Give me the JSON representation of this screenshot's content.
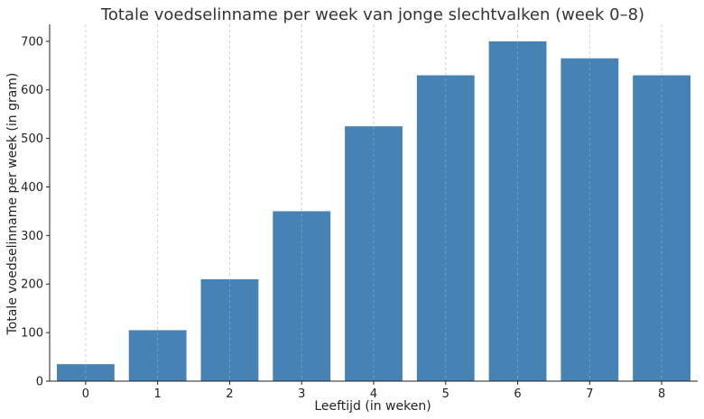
{
  "chart_data": {
    "type": "bar",
    "title": "Totale voedselinname per week van jonge slechtvalken (week 0–8)",
    "xlabel": "Leeftijd (in weken)",
    "ylabel": "Totale voedselinname per week (in gram)",
    "categories": [
      "0",
      "1",
      "2",
      "3",
      "4",
      "5",
      "6",
      "7",
      "8"
    ],
    "values": [
      35,
      105,
      210,
      350,
      525,
      630,
      700,
      665,
      630
    ],
    "ylim": [
      0,
      735
    ],
    "yticks": [
      0,
      100,
      200,
      300,
      400,
      500,
      600,
      700
    ],
    "grid": "vertical dashed",
    "bar_color": "#4682b4"
  }
}
